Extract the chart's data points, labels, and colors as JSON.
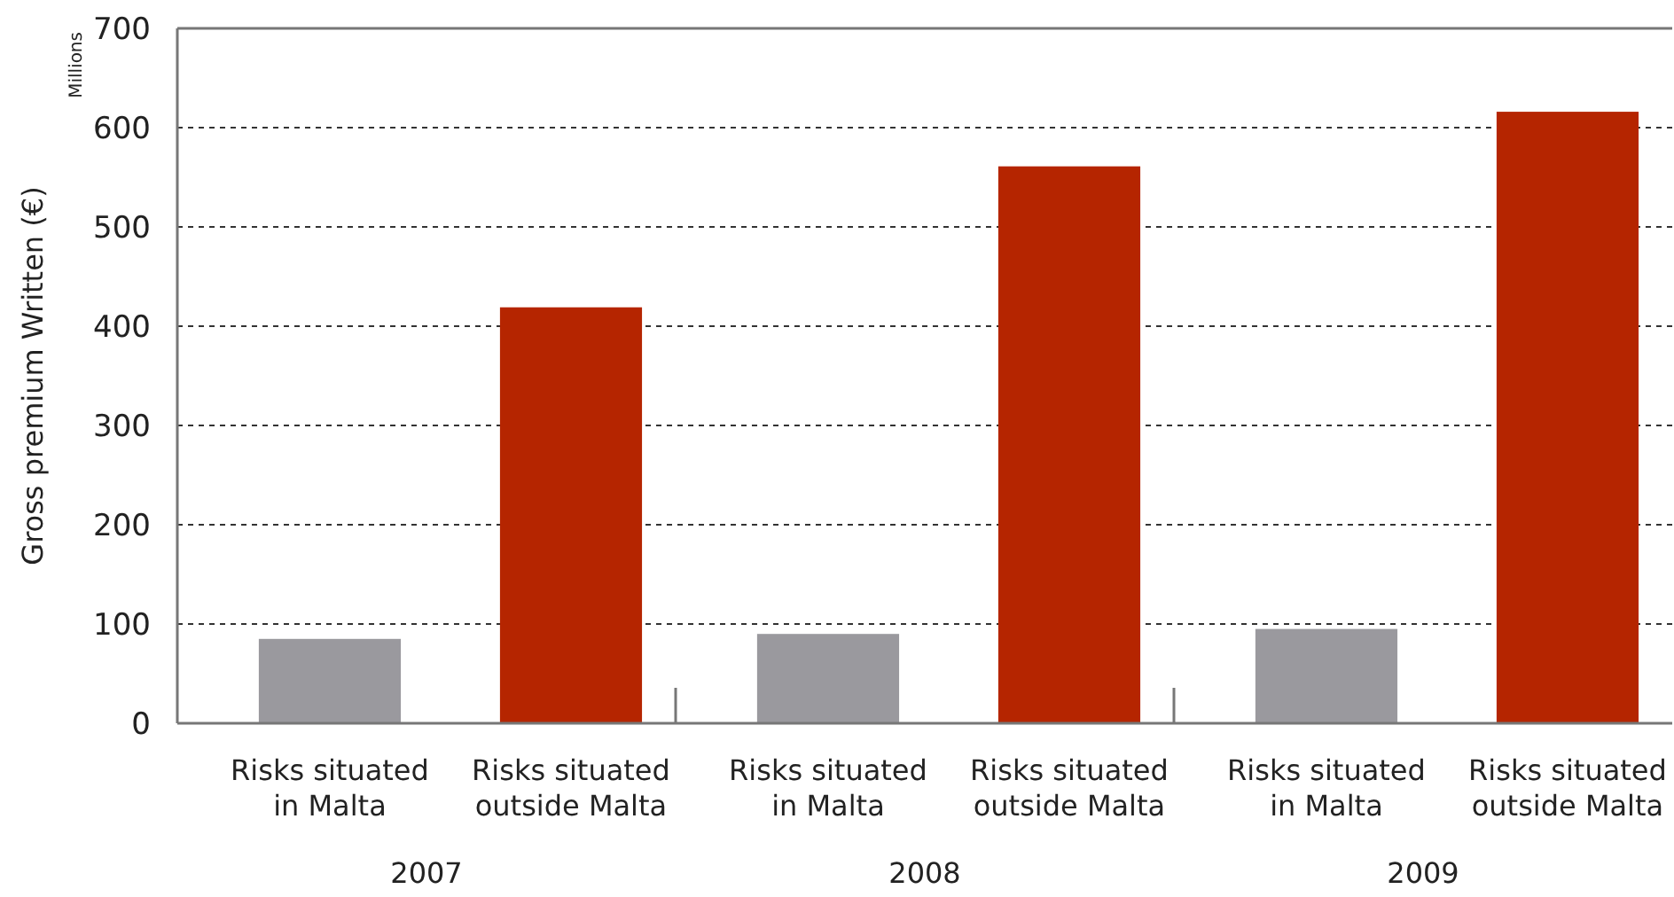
{
  "chart_data": {
    "type": "bar",
    "ylabel": "Gross premium Written (€)",
    "annotations": [
      "Millions"
    ],
    "categories": [
      "2007",
      "2008",
      "2009"
    ],
    "series": [
      {
        "name": "Risks situated in Malta",
        "color": "#9a999e",
        "values": [
          85,
          90,
          95
        ]
      },
      {
        "name": "Risks situated outside Malta",
        "color": "#b52500",
        "values": [
          419,
          561,
          616
        ]
      }
    ],
    "ylim": [
      0,
      700
    ],
    "yticks": [
      0,
      100,
      200,
      300,
      400,
      500,
      600,
      700
    ],
    "grid": "y"
  }
}
